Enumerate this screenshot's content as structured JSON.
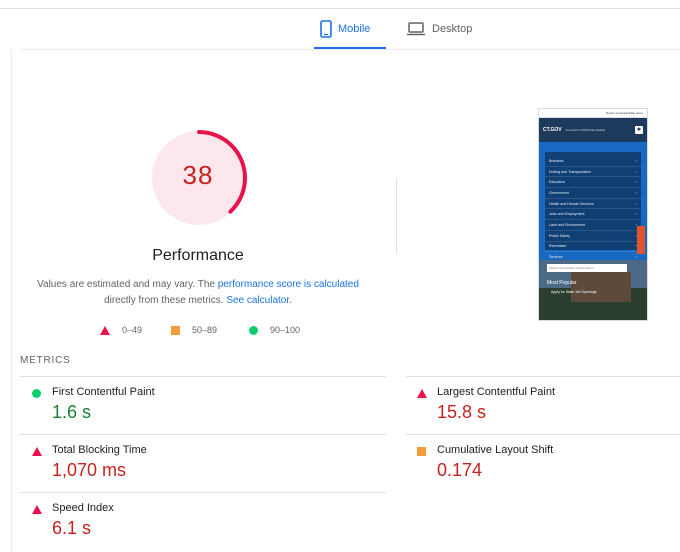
{
  "tabs": {
    "mobile_label": "Mobile",
    "desktop_label": "Desktop",
    "active": "Mobile"
  },
  "performance": {
    "score": "38",
    "score_fraction": 0.38,
    "title": "Performance",
    "desc_part1": "Values are estimated and may vary. The ",
    "desc_link1": "performance score is calculated",
    "desc_part2": " directly from these metrics. ",
    "desc_link2": "See calculator",
    "desc_part3": "."
  },
  "legend": {
    "fail_range": "0–49",
    "average_range": "50–89",
    "pass_range": "90–100"
  },
  "colors": {
    "fail": "#e8124d",
    "fail_text": "#c5221f",
    "average": "#f39c3c",
    "pass": "#0cce6b",
    "pass_text": "#188038",
    "accent": "#1a73e8"
  },
  "screenshot": {
    "top_text": "Report a website/Map issue",
    "logo": "CT.GOV",
    "tagline": "Connecticut's Official State Website",
    "nav_items": [
      "Business",
      "Driving and Transportation",
      "Education",
      "Government",
      "Health and Human Services",
      "Jobs and Employment",
      "Land and Environment",
      "Public Safety",
      "Recreation",
      "Services"
    ],
    "search_placeholder": "Search Connecticut Government...",
    "most_popular": "Most Popular",
    "popular_item": "Apply for State Job Openings"
  },
  "metrics": {
    "section_label": "METRICS",
    "items": [
      {
        "name": "First Contentful Paint",
        "value": "1.6 s",
        "status": "pass"
      },
      {
        "name": "Largest Contentful Paint",
        "value": "15.8 s",
        "status": "fail"
      },
      {
        "name": "Total Blocking Time",
        "value": "1,070 ms",
        "status": "fail"
      },
      {
        "name": "Cumulative Layout Shift",
        "value": "0.174",
        "status": "average"
      },
      {
        "name": "Speed Index",
        "value": "6.1 s",
        "status": "fail"
      }
    ]
  }
}
